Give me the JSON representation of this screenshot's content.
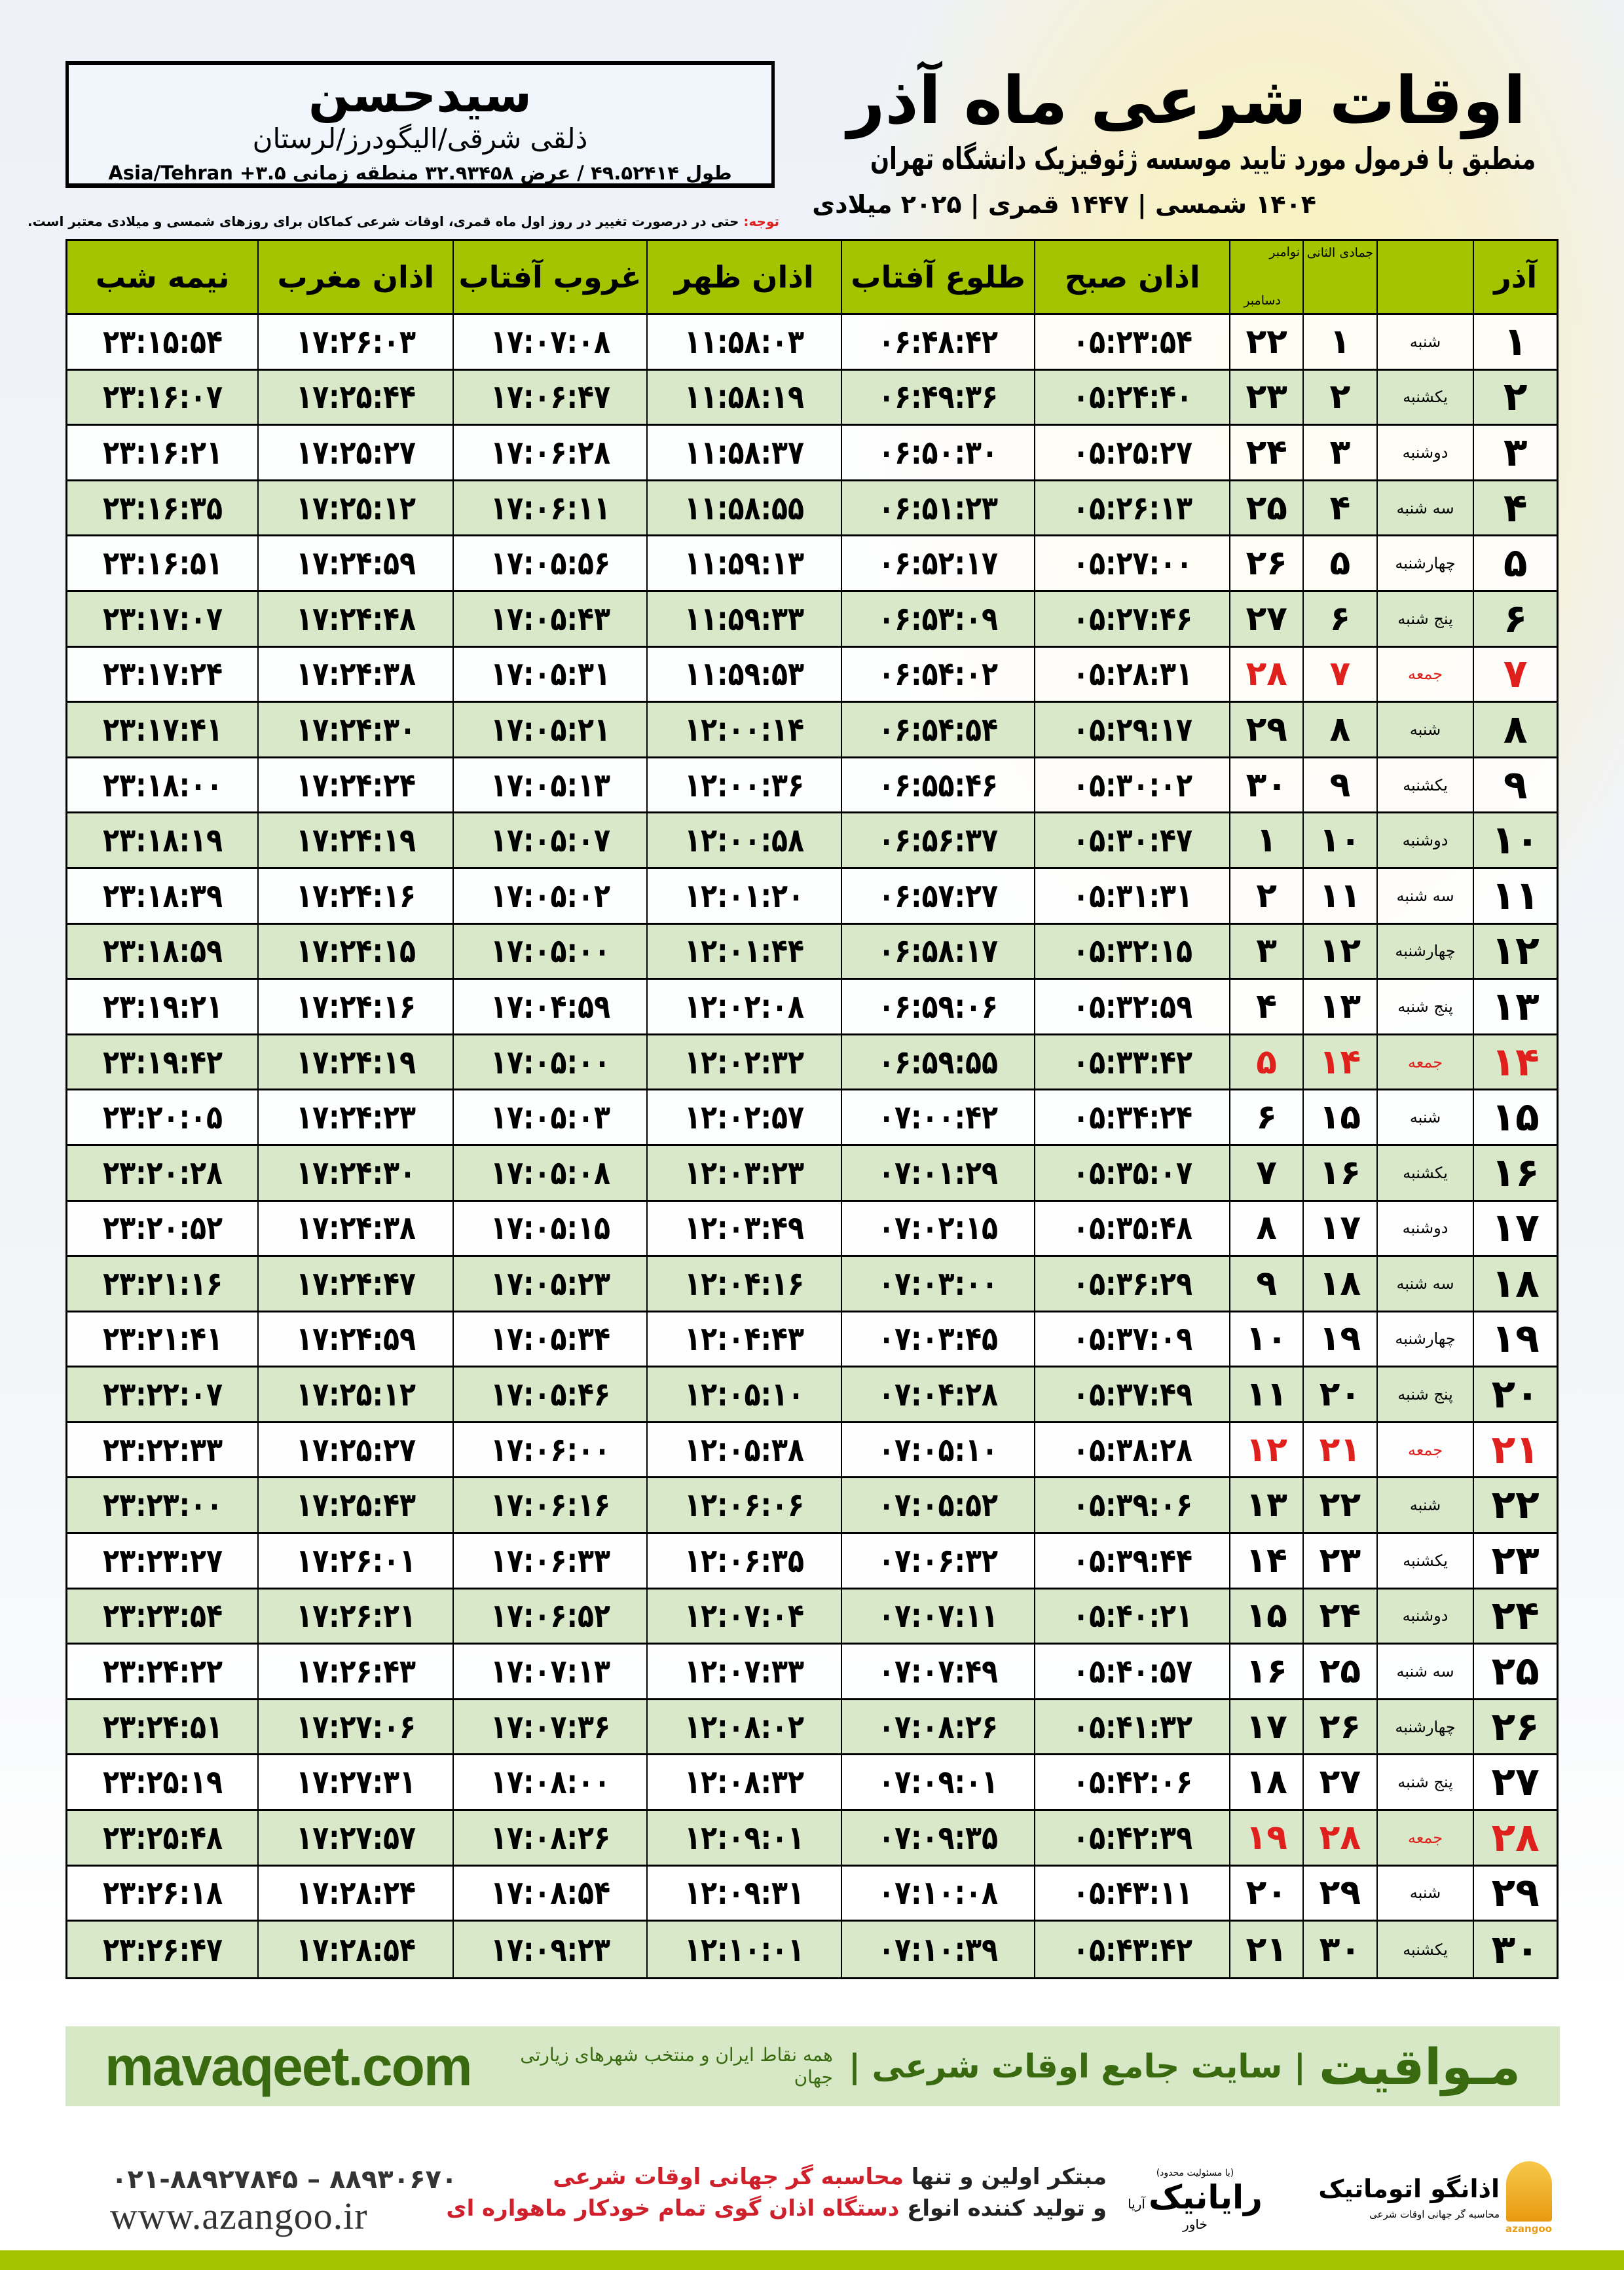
{
  "header": {
    "title": "اوقات شرعی ماه آذر",
    "subtitle": "منطبق با فرمول مورد تایید موسسه ژئوفیزیک دانشگاه تهران",
    "dates": "۱۴۰۴ شمسی | ۱۴۴۷ قمری | ۲۰۲۵ میلادی"
  },
  "location": {
    "name": "سیدحسن",
    "region": "ذلقی شرقی/الیگودرز/لرستان",
    "coords": "طول ۴۹.۵۲۴۱۴ / عرض ۳۲.۹۳۴۵۸ منطقه زمانی ۳.۵+ Asia/Tehran"
  },
  "note": {
    "label": "توجه:",
    "text": " حتی در درصورت تغییر در روز اول ماه قمری، اوقات شرعی کماکان برای روزهای شمسی و میلادی معتبر است."
  },
  "table": {
    "headers": {
      "midnight": "نیمه شب",
      "maghrib": "اذان مغرب",
      "sunset": "غروب آفتاب",
      "dhuhr": "اذان ظهر",
      "sunrise": "طلوع آفتاب",
      "fajr": "اذان صبح",
      "gregorian_top": "نوامبر",
      "gregorian_bottom": "دسامبر",
      "hijri": "جمادی الثانی",
      "month": "آذر"
    },
    "holiday_color": "#e0201c",
    "header_color": "#a5c400",
    "rows": [
      {
        "day": "۱",
        "weekday": "شنبه",
        "hijri": "۱",
        "greg": "۲۲",
        "fajr": "۰۵:۲۳:۵۴",
        "sunrise": "۰۶:۴۸:۴۲",
        "dhuhr": "۱۱:۵۸:۰۳",
        "sunset": "۱۷:۰۷:۰۸",
        "maghrib": "۱۷:۲۶:۰۳",
        "midnight": "۲۳:۱۵:۵۴"
      },
      {
        "day": "۲",
        "weekday": "یکشنبه",
        "hijri": "۲",
        "greg": "۲۳",
        "fajr": "۰۵:۲۴:۴۰",
        "sunrise": "۰۶:۴۹:۳۶",
        "dhuhr": "۱۱:۵۸:۱۹",
        "sunset": "۱۷:۰۶:۴۷",
        "maghrib": "۱۷:۲۵:۴۴",
        "midnight": "۲۳:۱۶:۰۷"
      },
      {
        "day": "۳",
        "weekday": "دوشنبه",
        "hijri": "۳",
        "greg": "۲۴",
        "fajr": "۰۵:۲۵:۲۷",
        "sunrise": "۰۶:۵۰:۳۰",
        "dhuhr": "۱۱:۵۸:۳۷",
        "sunset": "۱۷:۰۶:۲۸",
        "maghrib": "۱۷:۲۵:۲۷",
        "midnight": "۲۳:۱۶:۲۱"
      },
      {
        "day": "۴",
        "weekday": "سه شنبه",
        "hijri": "۴",
        "greg": "۲۵",
        "fajr": "۰۵:۲۶:۱۳",
        "sunrise": "۰۶:۵۱:۲۳",
        "dhuhr": "۱۱:۵۸:۵۵",
        "sunset": "۱۷:۰۶:۱۱",
        "maghrib": "۱۷:۲۵:۱۲",
        "midnight": "۲۳:۱۶:۳۵"
      },
      {
        "day": "۵",
        "weekday": "چهارشنبه",
        "hijri": "۵",
        "greg": "۲۶",
        "fajr": "۰۵:۲۷:۰۰",
        "sunrise": "۰۶:۵۲:۱۷",
        "dhuhr": "۱۱:۵۹:۱۳",
        "sunset": "۱۷:۰۵:۵۶",
        "maghrib": "۱۷:۲۴:۵۹",
        "midnight": "۲۳:۱۶:۵۱"
      },
      {
        "day": "۶",
        "weekday": "پنج شنبه",
        "hijri": "۶",
        "greg": "۲۷",
        "fajr": "۰۵:۲۷:۴۶",
        "sunrise": "۰۶:۵۳:۰۹",
        "dhuhr": "۱۱:۵۹:۳۳",
        "sunset": "۱۷:۰۵:۴۳",
        "maghrib": "۱۷:۲۴:۴۸",
        "midnight": "۲۳:۱۷:۰۷"
      },
      {
        "day": "۷",
        "weekday": "جمعه",
        "hijri": "۷",
        "greg": "۲۸",
        "holiday": true,
        "fajr": "۰۵:۲۸:۳۱",
        "sunrise": "۰۶:۵۴:۰۲",
        "dhuhr": "۱۱:۵۹:۵۳",
        "sunset": "۱۷:۰۵:۳۱",
        "maghrib": "۱۷:۲۴:۳۸",
        "midnight": "۲۳:۱۷:۲۴"
      },
      {
        "day": "۸",
        "weekday": "شنبه",
        "hijri": "۸",
        "greg": "۲۹",
        "fajr": "۰۵:۲۹:۱۷",
        "sunrise": "۰۶:۵۴:۵۴",
        "dhuhr": "۱۲:۰۰:۱۴",
        "sunset": "۱۷:۰۵:۲۱",
        "maghrib": "۱۷:۲۴:۳۰",
        "midnight": "۲۳:۱۷:۴۱"
      },
      {
        "day": "۹",
        "weekday": "یکشنبه",
        "hijri": "۹",
        "greg": "۳۰",
        "fajr": "۰۵:۳۰:۰۲",
        "sunrise": "۰۶:۵۵:۴۶",
        "dhuhr": "۱۲:۰۰:۳۶",
        "sunset": "۱۷:۰۵:۱۳",
        "maghrib": "۱۷:۲۴:۲۴",
        "midnight": "۲۳:۱۸:۰۰"
      },
      {
        "day": "۱۰",
        "weekday": "دوشنبه",
        "hijri": "۱۰",
        "greg": "۱",
        "fajr": "۰۵:۳۰:۴۷",
        "sunrise": "۰۶:۵۶:۳۷",
        "dhuhr": "۱۲:۰۰:۵۸",
        "sunset": "۱۷:۰۵:۰۷",
        "maghrib": "۱۷:۲۴:۱۹",
        "midnight": "۲۳:۱۸:۱۹"
      },
      {
        "day": "۱۱",
        "weekday": "سه شنبه",
        "hijri": "۱۱",
        "greg": "۲",
        "fajr": "۰۵:۳۱:۳۱",
        "sunrise": "۰۶:۵۷:۲۷",
        "dhuhr": "۱۲:۰۱:۲۰",
        "sunset": "۱۷:۰۵:۰۲",
        "maghrib": "۱۷:۲۴:۱۶",
        "midnight": "۲۳:۱۸:۳۹"
      },
      {
        "day": "۱۲",
        "weekday": "چهارشنبه",
        "hijri": "۱۲",
        "greg": "۳",
        "fajr": "۰۵:۳۲:۱۵",
        "sunrise": "۰۶:۵۸:۱۷",
        "dhuhr": "۱۲:۰۱:۴۴",
        "sunset": "۱۷:۰۵:۰۰",
        "maghrib": "۱۷:۲۴:۱۵",
        "midnight": "۲۳:۱۸:۵۹"
      },
      {
        "day": "۱۳",
        "weekday": "پنج شنبه",
        "hijri": "۱۳",
        "greg": "۴",
        "fajr": "۰۵:۳۲:۵۹",
        "sunrise": "۰۶:۵۹:۰۶",
        "dhuhr": "۱۲:۰۲:۰۸",
        "sunset": "۱۷:۰۴:۵۹",
        "maghrib": "۱۷:۲۴:۱۶",
        "midnight": "۲۳:۱۹:۲۱"
      },
      {
        "day": "۱۴",
        "weekday": "جمعه",
        "hijri": "۱۴",
        "greg": "۵",
        "holiday": true,
        "fajr": "۰۵:۳۳:۴۲",
        "sunrise": "۰۶:۵۹:۵۵",
        "dhuhr": "۱۲:۰۲:۳۲",
        "sunset": "۱۷:۰۵:۰۰",
        "maghrib": "۱۷:۲۴:۱۹",
        "midnight": "۲۳:۱۹:۴۲"
      },
      {
        "day": "۱۵",
        "weekday": "شنبه",
        "hijri": "۱۵",
        "greg": "۶",
        "fajr": "۰۵:۳۴:۲۴",
        "sunrise": "۰۷:۰۰:۴۲",
        "dhuhr": "۱۲:۰۲:۵۷",
        "sunset": "۱۷:۰۵:۰۳",
        "maghrib": "۱۷:۲۴:۲۳",
        "midnight": "۲۳:۲۰:۰۵"
      },
      {
        "day": "۱۶",
        "weekday": "یکشنبه",
        "hijri": "۱۶",
        "greg": "۷",
        "fajr": "۰۵:۳۵:۰۷",
        "sunrise": "۰۷:۰۱:۲۹",
        "dhuhr": "۱۲:۰۳:۲۳",
        "sunset": "۱۷:۰۵:۰۸",
        "maghrib": "۱۷:۲۴:۳۰",
        "midnight": "۲۳:۲۰:۲۸"
      },
      {
        "day": "۱۷",
        "weekday": "دوشنبه",
        "hijri": "۱۷",
        "greg": "۸",
        "fajr": "۰۵:۳۵:۴۸",
        "sunrise": "۰۷:۰۲:۱۵",
        "dhuhr": "۱۲:۰۳:۴۹",
        "sunset": "۱۷:۰۵:۱۵",
        "maghrib": "۱۷:۲۴:۳۸",
        "midnight": "۲۳:۲۰:۵۲"
      },
      {
        "day": "۱۸",
        "weekday": "سه شنبه",
        "hijri": "۱۸",
        "greg": "۹",
        "fajr": "۰۵:۳۶:۲۹",
        "sunrise": "۰۷:۰۳:۰۰",
        "dhuhr": "۱۲:۰۴:۱۶",
        "sunset": "۱۷:۰۵:۲۳",
        "maghrib": "۱۷:۲۴:۴۷",
        "midnight": "۲۳:۲۱:۱۶"
      },
      {
        "day": "۱۹",
        "weekday": "چهارشنبه",
        "hijri": "۱۹",
        "greg": "۱۰",
        "fajr": "۰۵:۳۷:۰۹",
        "sunrise": "۰۷:۰۳:۴۵",
        "dhuhr": "۱۲:۰۴:۴۳",
        "sunset": "۱۷:۰۵:۳۴",
        "maghrib": "۱۷:۲۴:۵۹",
        "midnight": "۲۳:۲۱:۴۱"
      },
      {
        "day": "۲۰",
        "weekday": "پنج شنبه",
        "hijri": "۲۰",
        "greg": "۱۱",
        "fajr": "۰۵:۳۷:۴۹",
        "sunrise": "۰۷:۰۴:۲۸",
        "dhuhr": "۱۲:۰۵:۱۰",
        "sunset": "۱۷:۰۵:۴۶",
        "maghrib": "۱۷:۲۵:۱۲",
        "midnight": "۲۳:۲۲:۰۷"
      },
      {
        "day": "۲۱",
        "weekday": "جمعه",
        "hijri": "۲۱",
        "greg": "۱۲",
        "holiday": true,
        "fajr": "۰۵:۳۸:۲۸",
        "sunrise": "۰۷:۰۵:۱۰",
        "dhuhr": "۱۲:۰۵:۳۸",
        "sunset": "۱۷:۰۶:۰۰",
        "maghrib": "۱۷:۲۵:۲۷",
        "midnight": "۲۳:۲۲:۳۳"
      },
      {
        "day": "۲۲",
        "weekday": "شنبه",
        "hijri": "۲۲",
        "greg": "۱۳",
        "fajr": "۰۵:۳۹:۰۶",
        "sunrise": "۰۷:۰۵:۵۲",
        "dhuhr": "۱۲:۰۶:۰۶",
        "sunset": "۱۷:۰۶:۱۶",
        "maghrib": "۱۷:۲۵:۴۳",
        "midnight": "۲۳:۲۳:۰۰"
      },
      {
        "day": "۲۳",
        "weekday": "یکشنبه",
        "hijri": "۲۳",
        "greg": "۱۴",
        "fajr": "۰۵:۳۹:۴۴",
        "sunrise": "۰۷:۰۶:۳۲",
        "dhuhr": "۱۲:۰۶:۳۵",
        "sunset": "۱۷:۰۶:۳۳",
        "maghrib": "۱۷:۲۶:۰۱",
        "midnight": "۲۳:۲۳:۲۷"
      },
      {
        "day": "۲۴",
        "weekday": "دوشنبه",
        "hijri": "۲۴",
        "greg": "۱۵",
        "fajr": "۰۵:۴۰:۲۱",
        "sunrise": "۰۷:۰۷:۱۱",
        "dhuhr": "۱۲:۰۷:۰۴",
        "sunset": "۱۷:۰۶:۵۲",
        "maghrib": "۱۷:۲۶:۲۱",
        "midnight": "۲۳:۲۳:۵۴"
      },
      {
        "day": "۲۵",
        "weekday": "سه شنبه",
        "hijri": "۲۵",
        "greg": "۱۶",
        "fajr": "۰۵:۴۰:۵۷",
        "sunrise": "۰۷:۰۷:۴۹",
        "dhuhr": "۱۲:۰۷:۳۳",
        "sunset": "۱۷:۰۷:۱۳",
        "maghrib": "۱۷:۲۶:۴۳",
        "midnight": "۲۳:۲۴:۲۲"
      },
      {
        "day": "۲۶",
        "weekday": "چهارشنبه",
        "hijri": "۲۶",
        "greg": "۱۷",
        "fajr": "۰۵:۴۱:۳۲",
        "sunrise": "۰۷:۰۸:۲۶",
        "dhuhr": "۱۲:۰۸:۰۲",
        "sunset": "۱۷:۰۷:۳۶",
        "maghrib": "۱۷:۲۷:۰۶",
        "midnight": "۲۳:۲۴:۵۱"
      },
      {
        "day": "۲۷",
        "weekday": "پنج شنبه",
        "hijri": "۲۷",
        "greg": "۱۸",
        "fajr": "۰۵:۴۲:۰۶",
        "sunrise": "۰۷:۰۹:۰۱",
        "dhuhr": "۱۲:۰۸:۳۲",
        "sunset": "۱۷:۰۸:۰۰",
        "maghrib": "۱۷:۲۷:۳۱",
        "midnight": "۲۳:۲۵:۱۹"
      },
      {
        "day": "۲۸",
        "weekday": "جمعه",
        "hijri": "۲۸",
        "greg": "۱۹",
        "holiday": true,
        "fajr": "۰۵:۴۲:۳۹",
        "sunrise": "۰۷:۰۹:۳۵",
        "dhuhr": "۱۲:۰۹:۰۱",
        "sunset": "۱۷:۰۸:۲۶",
        "maghrib": "۱۷:۲۷:۵۷",
        "midnight": "۲۳:۲۵:۴۸"
      },
      {
        "day": "۲۹",
        "weekday": "شنبه",
        "hijri": "۲۹",
        "greg": "۲۰",
        "fajr": "۰۵:۴۳:۱۱",
        "sunrise": "۰۷:۱۰:۰۸",
        "dhuhr": "۱۲:۰۹:۳۱",
        "sunset": "۱۷:۰۸:۵۴",
        "maghrib": "۱۷:۲۸:۲۴",
        "midnight": "۲۳:۲۶:۱۸"
      },
      {
        "day": "۳۰",
        "weekday": "یکشنبه",
        "hijri": "۳۰",
        "greg": "۲۱",
        "fajr": "۰۵:۴۳:۴۲",
        "sunrise": "۰۷:۱۰:۳۹",
        "dhuhr": "۱۲:۱۰:۰۱",
        "sunset": "۱۷:۰۹:۲۳",
        "maghrib": "۱۷:۲۸:۵۴",
        "midnight": "۲۳:۲۶:۴۷"
      }
    ]
  },
  "banner": {
    "brand": "مـواقیت",
    "tagline": "| سایت جامع اوقات شرعی |",
    "sub": "همه نقاط ایران و منتخب شهرهای زیارتی جهان",
    "url": "mavaqeet.com",
    "color": "#3a6a10"
  },
  "footer": {
    "phone": "۰۲۱-۸۸۹۲۷۸۴۵ – ۸۸۹۳۰۶۷۰",
    "website": "www.azangoo.ir",
    "line1_a": "مبتکر اولین و تنها ",
    "line1_b": "محاسبه گر جهانی اوقات شرعی",
    "line2_a": "و تولید کننده انواع ",
    "line2_b": "دستگاه اذان گوی تمام خودکار ماهواره ای",
    "rayanik_note": "(با مسئولیت محدود)",
    "rayanik_name": "رایانیک",
    "rayanik_side": "آریا خاور",
    "azangoo_name": "اذانگو اتوماتیک",
    "azangoo_tag": "محاسبه گر جهانی اوقات شرعی",
    "azangoo_latin": "azangoo"
  }
}
